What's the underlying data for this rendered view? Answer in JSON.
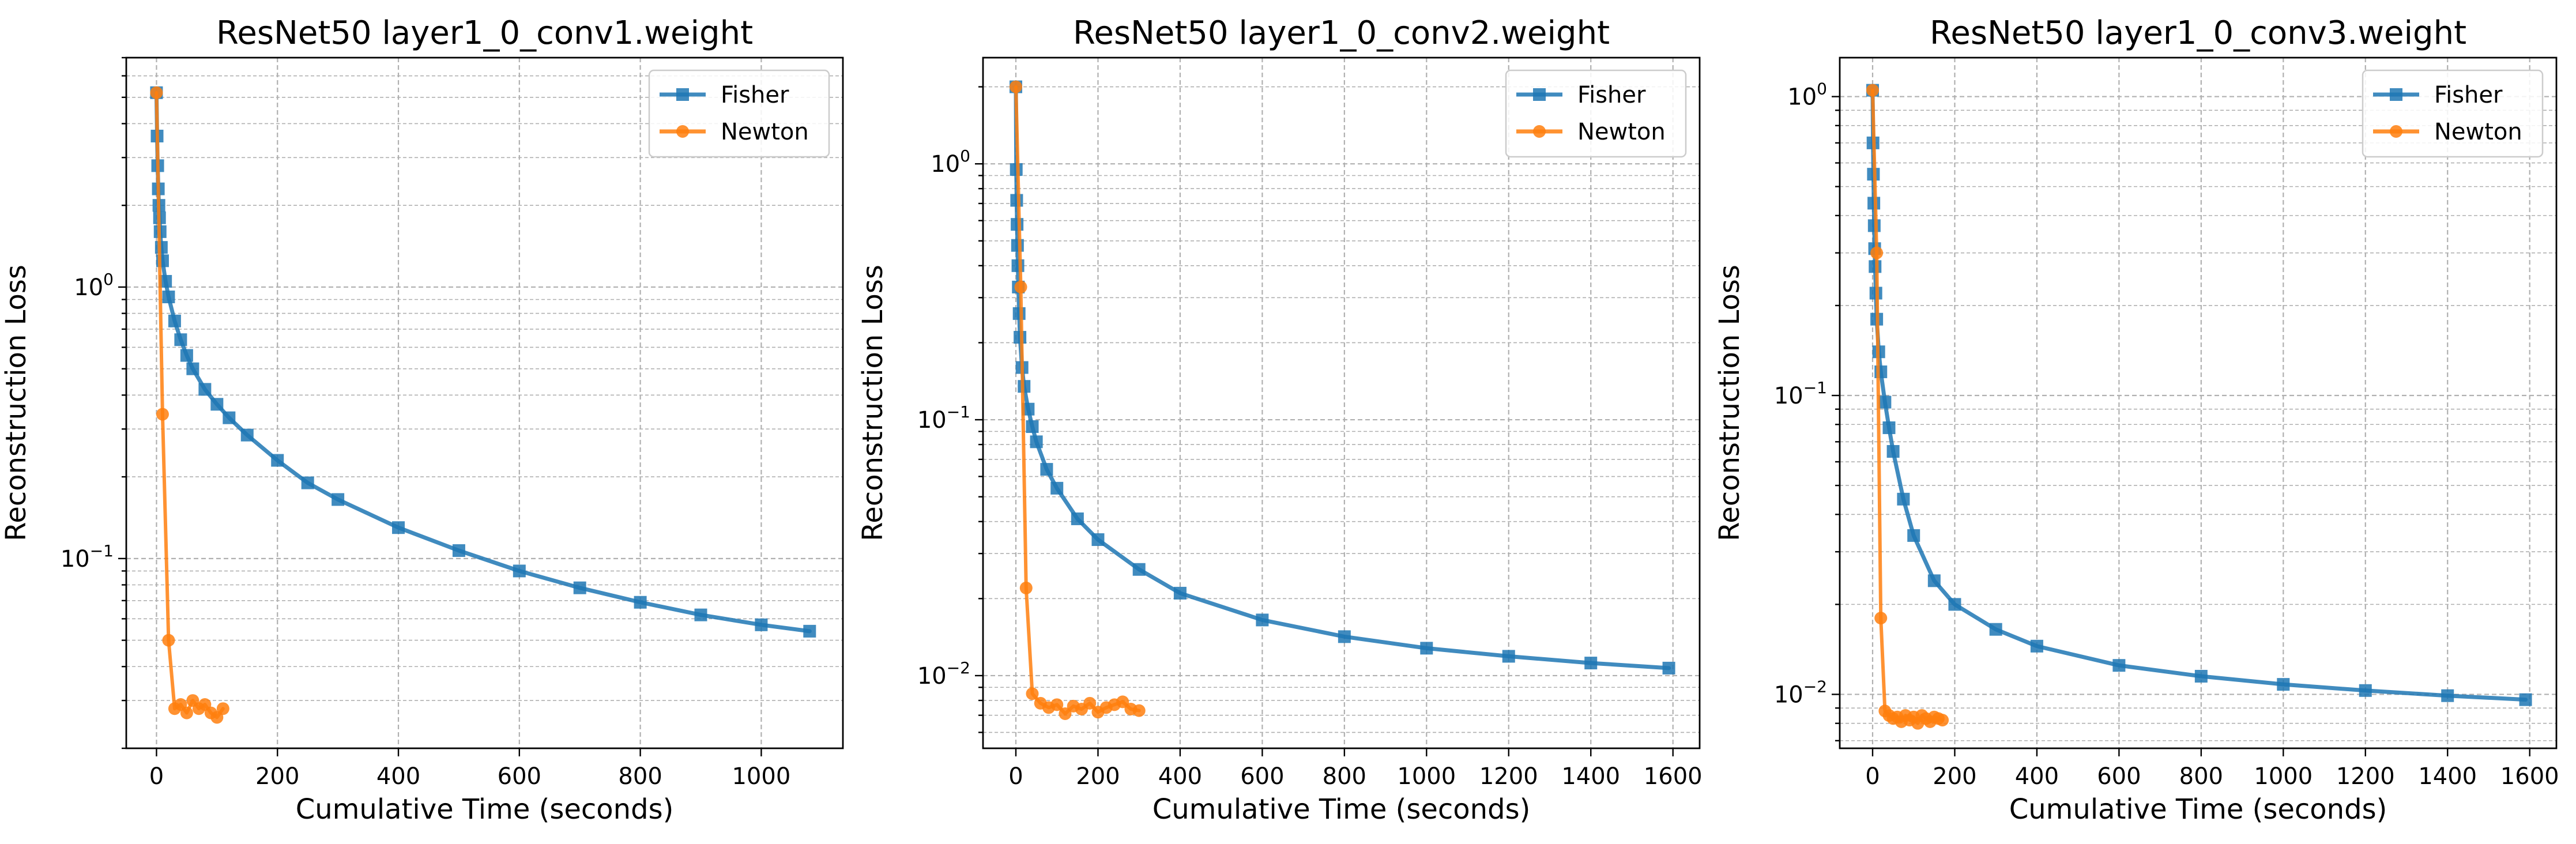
{
  "chart_data": [
    {
      "type": "line",
      "title": "ResNet50 layer1_0_conv1.weight",
      "xlabel": "Cumulative Time (seconds)",
      "ylabel": "Reconstruction Loss",
      "yscale": "log",
      "xlim": [
        -50,
        1135
      ],
      "ylim": [
        0.02,
        7.0
      ],
      "xticks": [
        0,
        200,
        400,
        600,
        800,
        1000
      ],
      "xtick_labels": [
        "0",
        "200",
        "400",
        "600",
        "800",
        "1000"
      ],
      "yticks": [
        0.1,
        1
      ],
      "ytick_labels": [
        "10^-1",
        "10^0"
      ],
      "grid": true,
      "legend_position": "upper right",
      "series": [
        {
          "name": "Fisher",
          "color": "#1f77b4",
          "marker": "square",
          "x": [
            0,
            1,
            2,
            3,
            4,
            5,
            6,
            8,
            10,
            15,
            20,
            30,
            40,
            50,
            60,
            80,
            100,
            120,
            150,
            200,
            250,
            300,
            400,
            500,
            600,
            700,
            800,
            900,
            1000,
            1080
          ],
          "y": [
            5.2,
            3.6,
            2.8,
            2.3,
            2.0,
            1.8,
            1.6,
            1.4,
            1.25,
            1.05,
            0.92,
            0.75,
            0.64,
            0.56,
            0.5,
            0.42,
            0.37,
            0.33,
            0.285,
            0.23,
            0.19,
            0.165,
            0.13,
            0.107,
            0.09,
            0.078,
            0.069,
            0.062,
            0.057,
            0.054
          ]
        },
        {
          "name": "Newton",
          "color": "#ff7f0e",
          "marker": "circle",
          "x": [
            0,
            10,
            20,
            30,
            40,
            50,
            60,
            70,
            80,
            90,
            100,
            110
          ],
          "y": [
            5.2,
            0.34,
            0.05,
            0.028,
            0.029,
            0.027,
            0.03,
            0.028,
            0.029,
            0.027,
            0.026,
            0.028
          ]
        }
      ]
    },
    {
      "type": "line",
      "title": "ResNet50 layer1_0_conv2.weight",
      "xlabel": "Cumulative Time (seconds)",
      "ylabel": "Reconstruction Loss",
      "yscale": "log",
      "xlim": [
        -80,
        1665
      ],
      "ylim": [
        0.0052,
        2.6
      ],
      "xticks": [
        0,
        200,
        400,
        600,
        800,
        1000,
        1200,
        1400,
        1600
      ],
      "xtick_labels": [
        "0",
        "200",
        "400",
        "600",
        "800",
        "1000",
        "1200",
        "1400",
        "1600"
      ],
      "yticks": [
        0.01,
        0.1,
        1
      ],
      "ytick_labels": [
        "10^-2",
        "10^-1",
        "10^0"
      ],
      "grid": true,
      "legend_position": "upper right",
      "series": [
        {
          "name": "Fisher",
          "color": "#1f77b4",
          "marker": "square",
          "x": [
            0,
            1,
            2,
            3,
            4,
            5,
            6,
            8,
            10,
            15,
            20,
            30,
            40,
            50,
            75,
            100,
            150,
            200,
            300,
            400,
            600,
            800,
            1000,
            1200,
            1400,
            1590
          ],
          "y": [
            2.0,
            0.95,
            0.72,
            0.58,
            0.48,
            0.4,
            0.33,
            0.26,
            0.21,
            0.16,
            0.135,
            0.11,
            0.094,
            0.082,
            0.064,
            0.054,
            0.041,
            0.034,
            0.026,
            0.021,
            0.0165,
            0.0142,
            0.0128,
            0.0119,
            0.0112,
            0.0107
          ]
        },
        {
          "name": "Newton",
          "color": "#ff7f0e",
          "marker": "circle",
          "x": [
            0,
            12,
            25,
            40,
            60,
            80,
            100,
            120,
            140,
            160,
            180,
            200,
            220,
            240,
            260,
            280,
            300
          ],
          "y": [
            2.0,
            0.33,
            0.022,
            0.0085,
            0.0078,
            0.0075,
            0.0077,
            0.0071,
            0.0076,
            0.0074,
            0.0078,
            0.0072,
            0.0075,
            0.0077,
            0.0079,
            0.0074,
            0.0073
          ]
        }
      ]
    },
    {
      "type": "line",
      "title": "ResNet50 layer1_0_conv3.weight",
      "xlabel": "Cumulative Time (seconds)",
      "ylabel": "Reconstruction Loss",
      "yscale": "log",
      "xlim": [
        -80,
        1665
      ],
      "ylim": [
        0.0066,
        1.35
      ],
      "xticks": [
        0,
        200,
        400,
        600,
        800,
        1000,
        1200,
        1400,
        1600
      ],
      "xtick_labels": [
        "0",
        "200",
        "400",
        "600",
        "800",
        "1000",
        "1200",
        "1400",
        "1600"
      ],
      "yticks": [
        0.01,
        0.1,
        1
      ],
      "ytick_labels": [
        "10^-2",
        "10^-1",
        "10^0"
      ],
      "grid": true,
      "legend_position": "upper right",
      "series": [
        {
          "name": "Fisher",
          "color": "#1f77b4",
          "marker": "square",
          "x": [
            0,
            1,
            2,
            3,
            4,
            5,
            6,
            8,
            10,
            15,
            20,
            30,
            40,
            50,
            75,
            100,
            150,
            200,
            300,
            400,
            600,
            800,
            1000,
            1200,
            1400,
            1590
          ],
          "y": [
            1.05,
            0.7,
            0.55,
            0.44,
            0.37,
            0.31,
            0.27,
            0.22,
            0.18,
            0.14,
            0.12,
            0.095,
            0.078,
            0.065,
            0.045,
            0.034,
            0.024,
            0.02,
            0.0165,
            0.0145,
            0.0125,
            0.0115,
            0.0108,
            0.0103,
            0.0099,
            0.0096
          ]
        },
        {
          "name": "Newton",
          "color": "#ff7f0e",
          "marker": "circle",
          "x": [
            0,
            10,
            20,
            30,
            40,
            50,
            60,
            70,
            80,
            90,
            100,
            110,
            120,
            130,
            140,
            150,
            160,
            170
          ],
          "y": [
            1.05,
            0.3,
            0.018,
            0.0088,
            0.0085,
            0.0083,
            0.0084,
            0.0081,
            0.0085,
            0.0082,
            0.0084,
            0.008,
            0.0085,
            0.0083,
            0.0081,
            0.0084,
            0.0083,
            0.0082
          ]
        }
      ]
    }
  ]
}
